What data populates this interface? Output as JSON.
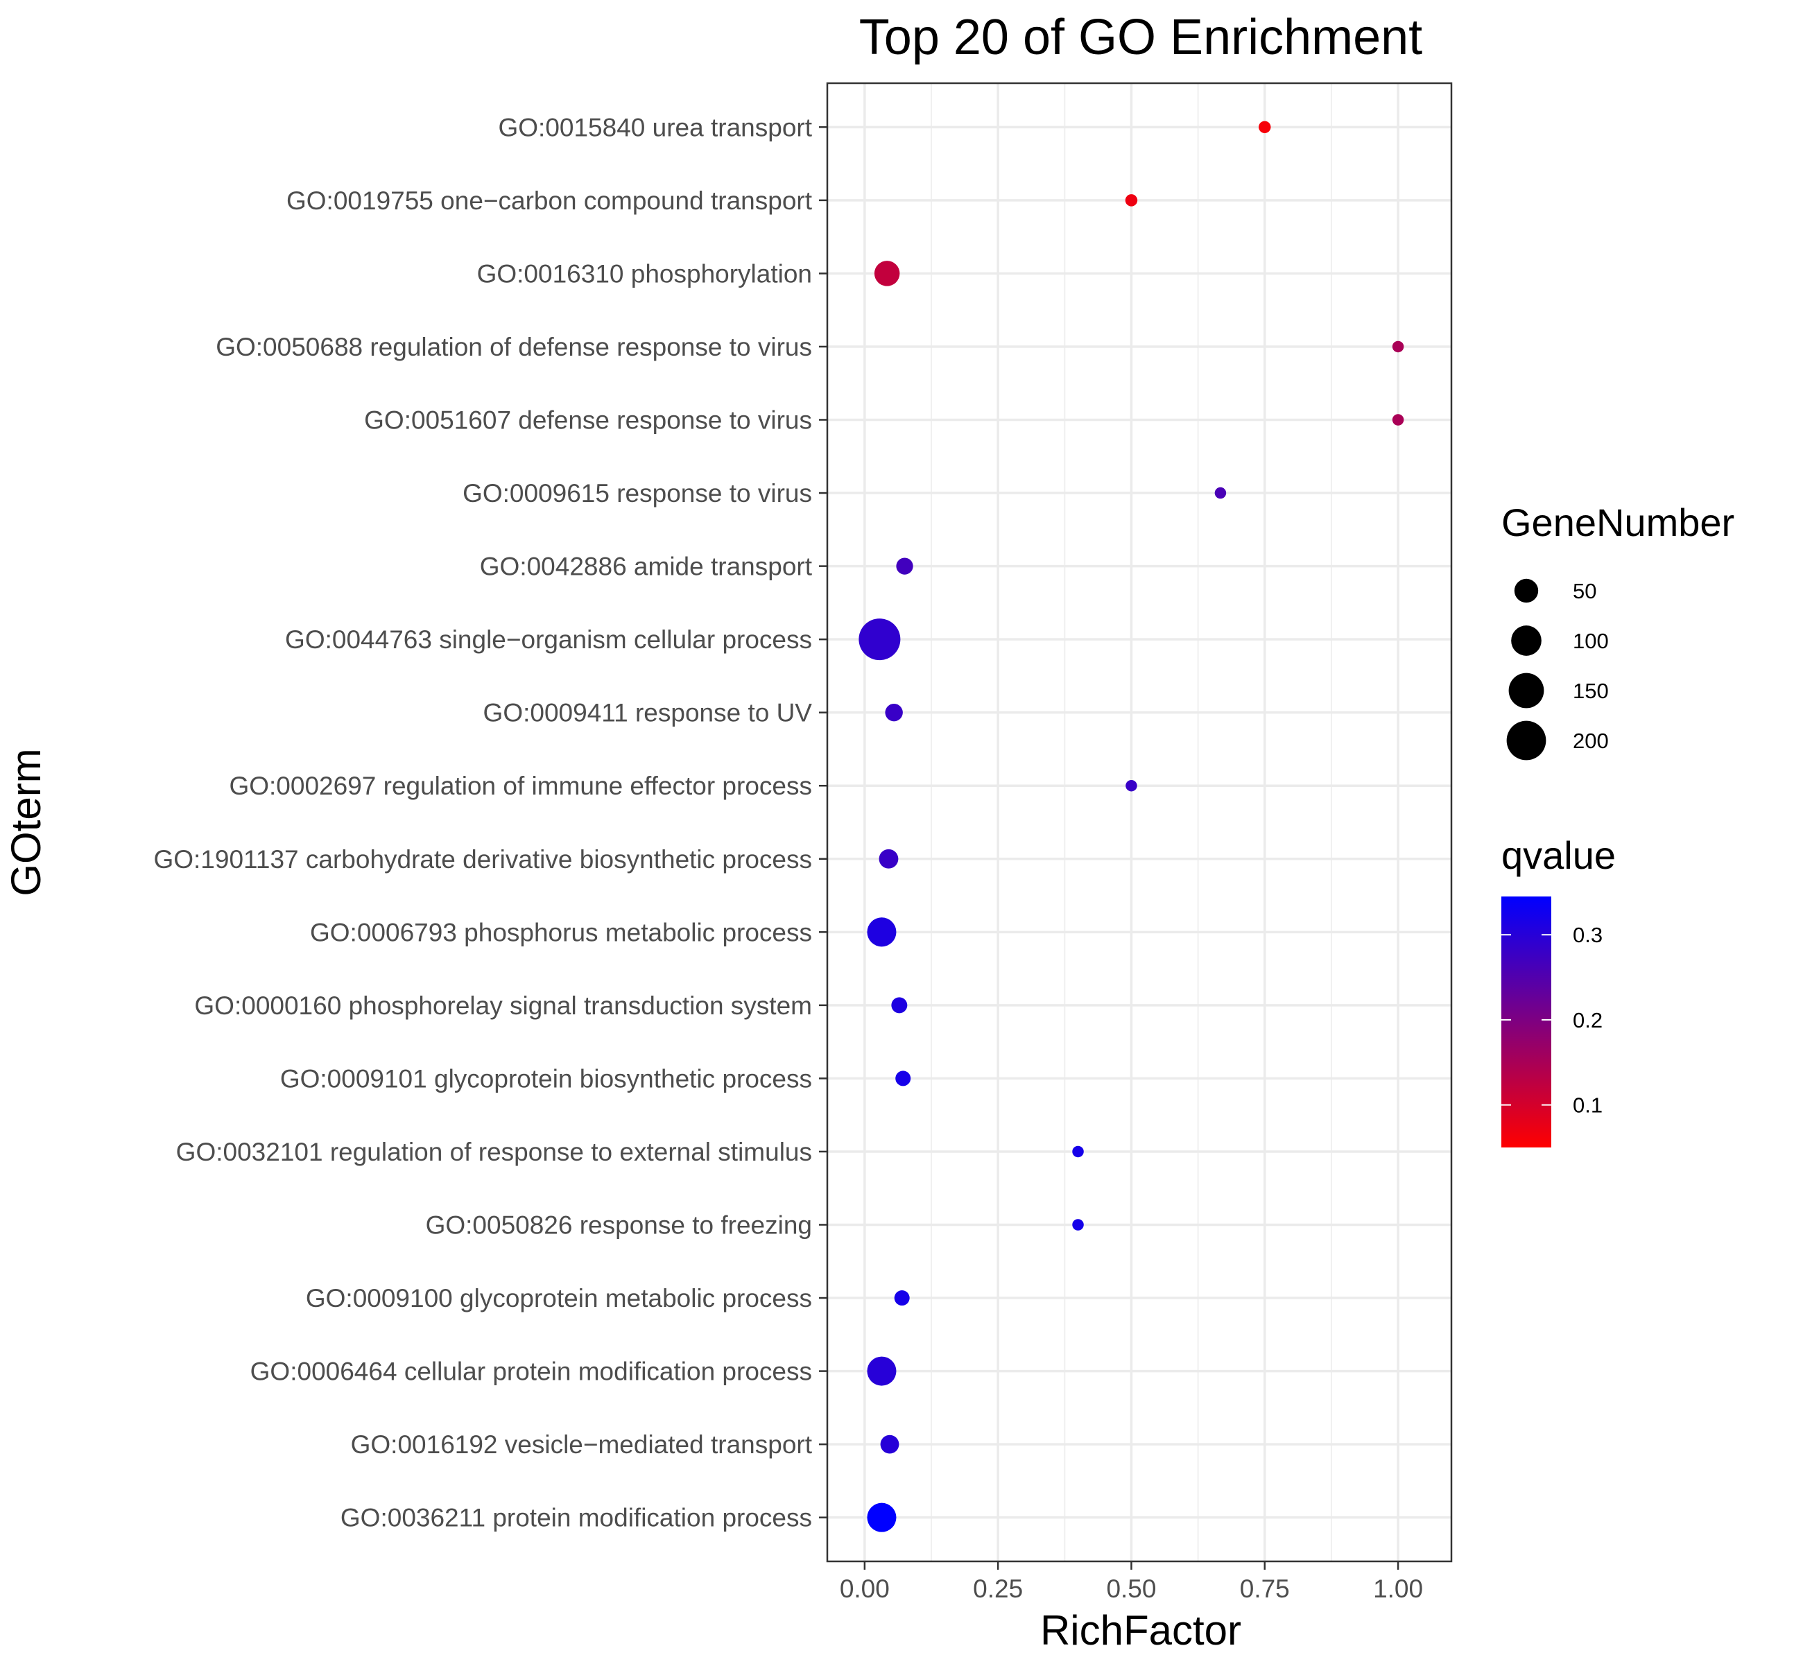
{
  "chart_data": {
    "type": "scatter",
    "title": "Top 20 of GO Enrichment",
    "xlabel": "RichFactor",
    "ylabel": "GOterm",
    "xlim": [
      -0.07,
      1.1
    ],
    "x_ticks": [
      0.0,
      0.25,
      0.5,
      0.75,
      1.0
    ],
    "x_tick_labels": [
      "0.00",
      "0.25",
      "0.50",
      "0.75",
      "1.00"
    ],
    "grid": true,
    "legend_position": "right",
    "points": [
      {
        "term": "GO:0015840 urea transport",
        "rich_factor": 0.75,
        "gene_number": 3,
        "qvalue": 0.06
      },
      {
        "term": "GO:0019755 one−carbon compound transport",
        "rich_factor": 0.5,
        "gene_number": 3,
        "qvalue": 0.07
      },
      {
        "term": "GO:0016310 phosphorylation",
        "rich_factor": 0.042,
        "gene_number": 60,
        "qvalue": 0.12
      },
      {
        "term": "GO:0050688 regulation of defense response to virus",
        "rich_factor": 1.0,
        "gene_number": 2,
        "qvalue": 0.15
      },
      {
        "term": "GO:0051607 defense response to virus",
        "rich_factor": 1.0,
        "gene_number": 2,
        "qvalue": 0.15
      },
      {
        "term": "GO:0009615 response to virus",
        "rich_factor": 0.667,
        "gene_number": 2,
        "qvalue": 0.26
      },
      {
        "term": "GO:0042886 amide transport",
        "rich_factor": 0.075,
        "gene_number": 15,
        "qvalue": 0.27
      },
      {
        "term": "GO:0044763 single−organism cellular process",
        "rich_factor": 0.028,
        "gene_number": 230,
        "qvalue": 0.29
      },
      {
        "term": "GO:0009411 response to UV",
        "rich_factor": 0.055,
        "gene_number": 18,
        "qvalue": 0.28
      },
      {
        "term": "GO:0002697 regulation of immune effector process",
        "rich_factor": 0.5,
        "gene_number": 2,
        "qvalue": 0.28
      },
      {
        "term": "GO:1901137 carbohydrate derivative biosynthetic process",
        "rich_factor": 0.045,
        "gene_number": 25,
        "qvalue": 0.28
      },
      {
        "term": "GO:0006793 phosphorus metabolic process",
        "rich_factor": 0.032,
        "gene_number": 90,
        "qvalue": 0.31
      },
      {
        "term": "GO:0000160 phosphorelay signal transduction system",
        "rich_factor": 0.065,
        "gene_number": 12,
        "qvalue": 0.31
      },
      {
        "term": "GO:0009101 glycoprotein biosynthetic process",
        "rich_factor": 0.072,
        "gene_number": 10,
        "qvalue": 0.32
      },
      {
        "term": "GO:0032101 regulation of response to external stimulus",
        "rich_factor": 0.4,
        "gene_number": 2,
        "qvalue": 0.32
      },
      {
        "term": "GO:0050826 response to freezing",
        "rich_factor": 0.4,
        "gene_number": 2,
        "qvalue": 0.32
      },
      {
        "term": "GO:0009100 glycoprotein metabolic process",
        "rich_factor": 0.07,
        "gene_number": 10,
        "qvalue": 0.32
      },
      {
        "term": "GO:0006464 cellular protein modification process",
        "rich_factor": 0.032,
        "gene_number": 90,
        "qvalue": 0.3
      },
      {
        "term": "GO:0016192 vesicle−mediated transport",
        "rich_factor": 0.047,
        "gene_number": 22,
        "qvalue": 0.3
      },
      {
        "term": "GO:0036211 protein modification process",
        "rich_factor": 0.032,
        "gene_number": 90,
        "qvalue": 0.345
      }
    ],
    "size_legend": {
      "title": "GeneNumber",
      "values": [
        50,
        100,
        150,
        200
      ],
      "labels": [
        "50",
        "100",
        "150",
        "200"
      ]
    },
    "color_legend": {
      "title": "qvalue",
      "range": [
        0.05,
        0.345
      ],
      "ticks": [
        0.1,
        0.2,
        0.3
      ],
      "tick_labels": [
        "0.1",
        "0.2",
        "0.3"
      ],
      "low_color": "#ff0000",
      "high_color": "#0000ff"
    }
  }
}
